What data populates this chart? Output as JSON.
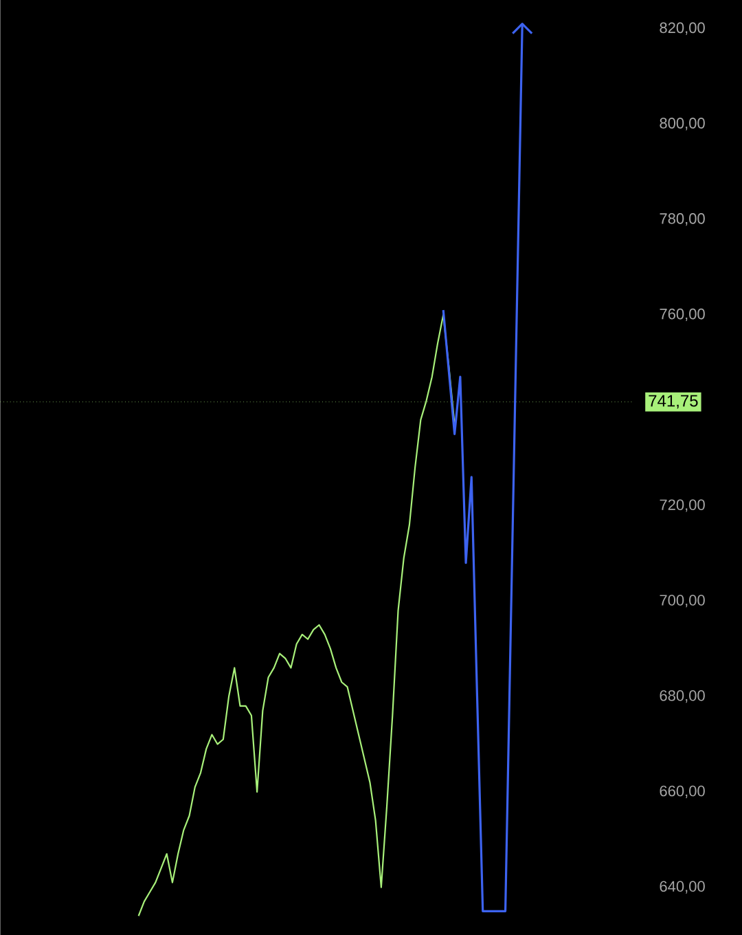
{
  "chart_data": {
    "type": "line",
    "tick_labels": "y",
    "ylim": [
      630,
      826
    ],
    "categories": [
      null,
      null,
      null,
      null,
      null,
      null,
      null,
      null,
      null,
      null,
      null,
      null,
      null,
      null,
      null,
      null,
      null,
      null,
      null,
      null,
      null,
      null,
      null,
      null,
      null,
      null,
      null,
      null,
      null,
      null,
      null,
      null,
      null,
      null,
      null,
      null,
      null,
      null,
      null,
      null,
      null,
      null,
      null,
      null,
      null,
      null,
      null,
      null,
      null,
      null,
      null,
      null,
      null,
      null,
      null,
      null,
      null,
      null,
      null,
      null,
      null,
      null,
      null,
      null,
      null,
      null,
      null,
      null,
      null,
      null,
      null,
      null,
      null,
      null,
      null,
      null,
      null,
      null,
      null,
      null,
      null,
      null,
      null,
      null,
      null,
      null,
      null,
      null,
      null,
      null,
      null,
      null,
      null,
      null,
      null,
      null,
      null,
      null,
      null,
      null,
      null,
      null,
      null,
      null,
      null,
      null,
      null,
      null,
      null,
      null,
      null,
      null
    ],
    "yticks": [
      {
        "value": 640,
        "label": "640,00"
      },
      {
        "value": 660,
        "label": "660,00"
      },
      {
        "value": 680,
        "label": "680,00"
      },
      {
        "value": 700,
        "label": "700,00"
      },
      {
        "value": 720,
        "label": "720,00"
      },
      {
        "value": 760,
        "label": "760,00"
      },
      {
        "value": 780,
        "label": "780,00"
      },
      {
        "value": 800,
        "label": "800,00"
      },
      {
        "value": 820,
        "label": "820,00"
      }
    ],
    "series": [
      {
        "color": "#a8f07a",
        "values": [
          null,
          null,
          null,
          null,
          null,
          null,
          null,
          null,
          null,
          null,
          null,
          null,
          null,
          null,
          null,
          null,
          null,
          null,
          null,
          null,
          null,
          null,
          null,
          null,
          634,
          637,
          639,
          641,
          644,
          647,
          641,
          647,
          652,
          655,
          661,
          664,
          669,
          672,
          670,
          671,
          680,
          686,
          678,
          678,
          676,
          660,
          677,
          684,
          686,
          689,
          688,
          686,
          691,
          693,
          692,
          694,
          695,
          693,
          690,
          686,
          683,
          682,
          677,
          672,
          667,
          662,
          654,
          640,
          657,
          676,
          698,
          709,
          716,
          728,
          738,
          742,
          747,
          754,
          760,
          749,
          737,
          null,
          null,
          null,
          null,
          null,
          null,
          null,
          null,
          null,
          null,
          null,
          null,
          null,
          null,
          null,
          null,
          null,
          null,
          null,
          null,
          null,
          null,
          null,
          null,
          null,
          null,
          null,
          null,
          null,
          null,
          null
        ]
      },
      {
        "color": "#3d63f0",
        "values": [
          null,
          null,
          null,
          null,
          null,
          null,
          null,
          null,
          null,
          null,
          null,
          null,
          null,
          null,
          null,
          null,
          null,
          null,
          null,
          null,
          null,
          null,
          null,
          null,
          null,
          null,
          null,
          null,
          null,
          null,
          null,
          null,
          null,
          null,
          null,
          null,
          null,
          null,
          null,
          null,
          null,
          null,
          null,
          null,
          null,
          null,
          null,
          null,
          null,
          null,
          null,
          null,
          null,
          null,
          null,
          null,
          null,
          null,
          null,
          null,
          null,
          null,
          null,
          null,
          null,
          null,
          null,
          null,
          null,
          null,
          null,
          null,
          null,
          null,
          null,
          null,
          null,
          null,
          761,
          748,
          735,
          747,
          708,
          726,
          680,
          635,
          635,
          635,
          635,
          635,
          697,
          759,
          821,
          null,
          null,
          null,
          null,
          null,
          null,
          null,
          null,
          null,
          null,
          null,
          null,
          null,
          null,
          null,
          null,
          null,
          null,
          null
        ]
      }
    ],
    "ref_lines": [
      {
        "axis": "y",
        "value": 741.75,
        "label": "741,75",
        "color": "#a8f07a",
        "line_style": "dotted"
      }
    ]
  }
}
